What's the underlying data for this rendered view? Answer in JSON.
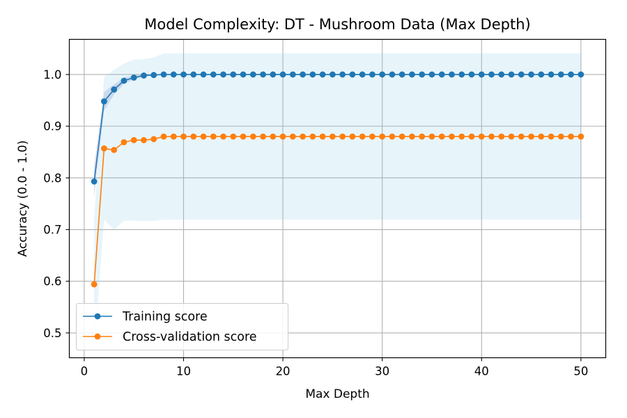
{
  "chart_data": {
    "type": "line",
    "title": "Model Complexity: DT - Mushroom Data (Max Depth)",
    "xlabel": "Max Depth",
    "ylabel": "Accuracy (0.0 - 1.0)",
    "xlim": [
      -1.5,
      52.5
    ],
    "ylim": [
      0.452,
      1.068
    ],
    "xticks": [
      0,
      10,
      20,
      30,
      40,
      50
    ],
    "yticks": [
      0.5,
      0.6,
      0.7,
      0.8,
      0.9,
      1.0
    ],
    "xtick_labels": [
      "0",
      "10",
      "20",
      "30",
      "40",
      "50"
    ],
    "ytick_labels": [
      "0.5",
      "0.6",
      "0.7",
      "0.8",
      "0.9",
      "1.0"
    ],
    "grid": true,
    "legend_position": "lower-left",
    "x": [
      1,
      2,
      3,
      4,
      5,
      6,
      7,
      8,
      9,
      10,
      11,
      12,
      13,
      14,
      15,
      16,
      17,
      18,
      19,
      20,
      21,
      22,
      23,
      24,
      25,
      26,
      27,
      28,
      29,
      30,
      31,
      32,
      33,
      34,
      35,
      36,
      37,
      38,
      39,
      40,
      41,
      42,
      43,
      44,
      45,
      46,
      47,
      48,
      49,
      50
    ],
    "series": [
      {
        "name": "Training score",
        "color": "#1f77b4",
        "band_color": "#8c8cc8",
        "values": [
          0.793,
          0.948,
          0.971,
          0.988,
          0.994,
          0.998,
          0.999,
          1.0,
          1.0,
          1.0,
          1.0,
          1.0,
          1.0,
          1.0,
          1.0,
          1.0,
          1.0,
          1.0,
          1.0,
          1.0,
          1.0,
          1.0,
          1.0,
          1.0,
          1.0,
          1.0,
          1.0,
          1.0,
          1.0,
          1.0,
          1.0,
          1.0,
          1.0,
          1.0,
          1.0,
          1.0,
          1.0,
          1.0,
          1.0,
          1.0,
          1.0,
          1.0,
          1.0,
          1.0,
          1.0,
          1.0,
          1.0,
          1.0,
          1.0,
          1.0
        ],
        "std": [
          0.03,
          0.018,
          0.01,
          0.006,
          0.004,
          0.002,
          0.001,
          0,
          0,
          0,
          0,
          0,
          0,
          0,
          0,
          0,
          0,
          0,
          0,
          0,
          0,
          0,
          0,
          0,
          0,
          0,
          0,
          0,
          0,
          0,
          0,
          0,
          0,
          0,
          0,
          0,
          0,
          0,
          0,
          0,
          0,
          0,
          0,
          0,
          0,
          0,
          0,
          0,
          0,
          0
        ]
      },
      {
        "name": "Cross-validation score",
        "color": "#ff7f0e",
        "band_color": "#87ceeb",
        "values": [
          0.594,
          0.857,
          0.854,
          0.869,
          0.873,
          0.873,
          0.875,
          0.88,
          0.88,
          0.88,
          0.88,
          0.88,
          0.88,
          0.88,
          0.88,
          0.88,
          0.88,
          0.88,
          0.88,
          0.88,
          0.88,
          0.88,
          0.88,
          0.88,
          0.88,
          0.88,
          0.88,
          0.88,
          0.88,
          0.88,
          0.88,
          0.88,
          0.88,
          0.88,
          0.88,
          0.88,
          0.88,
          0.88,
          0.88,
          0.88,
          0.88,
          0.88,
          0.88,
          0.88,
          0.88,
          0.88,
          0.88,
          0.88,
          0.88,
          0.88
        ],
        "std": [
          0.13,
          0.138,
          0.155,
          0.152,
          0.156,
          0.157,
          0.158,
          0.161,
          0.161,
          0.161,
          0.161,
          0.161,
          0.161,
          0.161,
          0.161,
          0.161,
          0.161,
          0.161,
          0.161,
          0.161,
          0.161,
          0.161,
          0.161,
          0.161,
          0.161,
          0.161,
          0.161,
          0.161,
          0.161,
          0.161,
          0.161,
          0.161,
          0.161,
          0.161,
          0.161,
          0.161,
          0.161,
          0.161,
          0.161,
          0.161,
          0.161,
          0.161,
          0.161,
          0.161,
          0.161,
          0.161,
          0.161,
          0.161,
          0.161,
          0.161
        ]
      }
    ]
  }
}
